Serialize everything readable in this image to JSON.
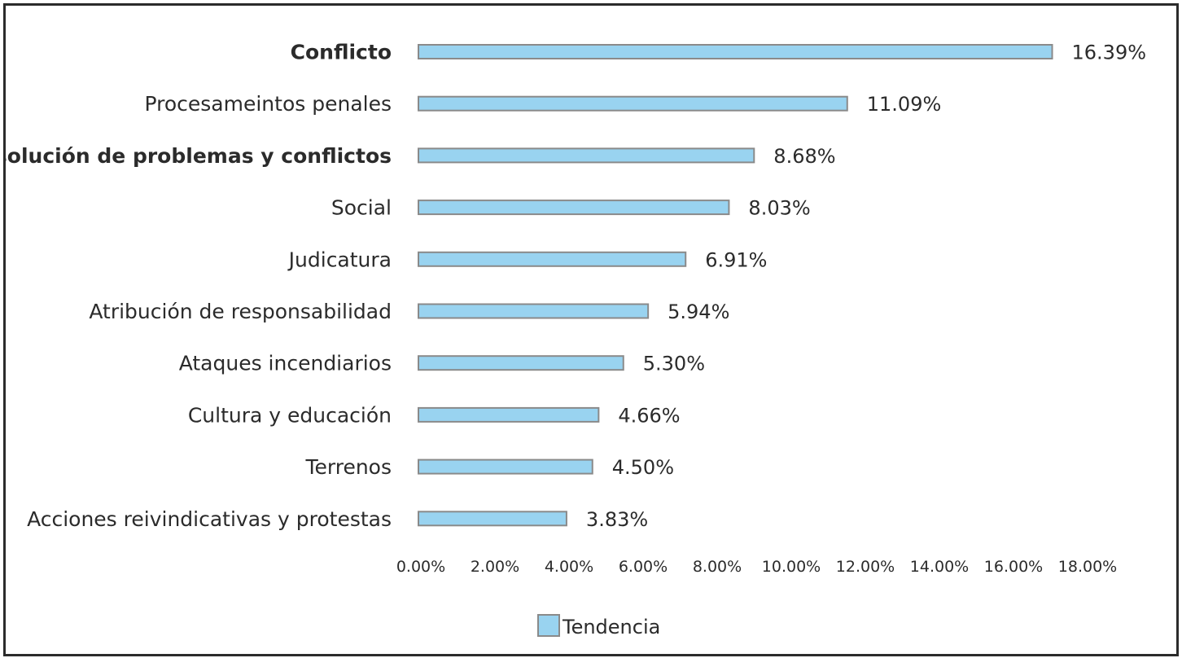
{
  "chart_data": {
    "type": "bar",
    "orientation": "horizontal",
    "categories": [
      "Conflicto",
      "Procesameintos penales",
      "Resolución de problemas y conflictos",
      "Social",
      "Judicatura",
      "Atribución de responsabilidad",
      "Ataques incendiarios",
      "Cultura y educación",
      "Terrenos",
      "Acciones reivindicativas y protestas"
    ],
    "bold_categories": [
      0,
      2
    ],
    "series": [
      {
        "name": "Tendencia",
        "values": [
          16.39,
          11.09,
          8.68,
          8.03,
          6.91,
          5.94,
          5.3,
          4.66,
          4.5,
          3.83
        ],
        "labels": [
          "16.39%",
          "11.09%",
          "8.68%",
          "8.03%",
          "6.91%",
          "5.94%",
          "5.30%",
          "4.66%",
          "4.50%",
          "3.83%"
        ]
      }
    ],
    "xlim": [
      0,
      18
    ],
    "xticks": [
      "0.00%",
      "2.00%",
      "4.00%",
      "6.00%",
      "8.00%",
      "10.00%",
      "12.00%",
      "14.00%",
      "16.00%",
      "18.00%"
    ],
    "grid": false,
    "legend": "bottom-center",
    "colors": {
      "bar_fill": "#99d3f0",
      "bar_stroke": "#8a8a8a",
      "text": "#2b2b2b"
    }
  }
}
